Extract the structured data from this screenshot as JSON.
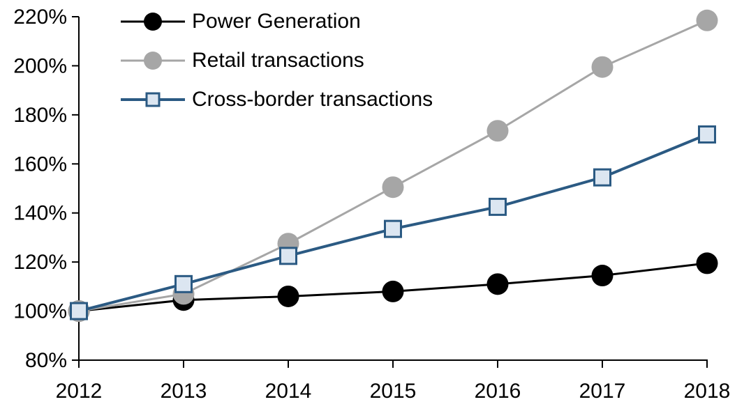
{
  "chart_data": {
    "type": "line",
    "title": "",
    "xlabel": "",
    "ylabel": "",
    "background": "#FFFFFF",
    "axis_color": "#000000",
    "grid": false,
    "legend_position": "top-left",
    "ylim": [
      80,
      220
    ],
    "ytick_values": [
      80,
      100,
      120,
      140,
      160,
      180,
      200,
      220
    ],
    "ytick_labels": [
      "80%",
      "100%",
      "120%",
      "140%",
      "160%",
      "180%",
      "200%",
      "220%"
    ],
    "x_labels": [
      "2012",
      "2013",
      "2014",
      "2015",
      "2016",
      "2017",
      "2018"
    ],
    "series": [
      {
        "name": "Power Generation",
        "color": "#000000",
        "marker": "circle",
        "marker_fill": "#000000",
        "line_width": 3,
        "values": [
          100,
          104.5,
          106,
          108,
          111,
          114.5,
          119.5
        ]
      },
      {
        "name": "Retail transactions",
        "color": "#A6A6A6",
        "marker": "circle",
        "marker_fill": "#A6A6A6",
        "line_width": 3,
        "values": [
          100,
          107,
          127.5,
          150.5,
          173.5,
          199.5,
          218.5
        ]
      },
      {
        "name": "Cross-border transactions",
        "color": "#2B5A83",
        "marker": "square",
        "marker_fill": "#DCE6F1",
        "line_width": 4,
        "values": [
          100,
          111,
          122.5,
          133.5,
          142.5,
          154.5,
          172
        ]
      }
    ]
  }
}
